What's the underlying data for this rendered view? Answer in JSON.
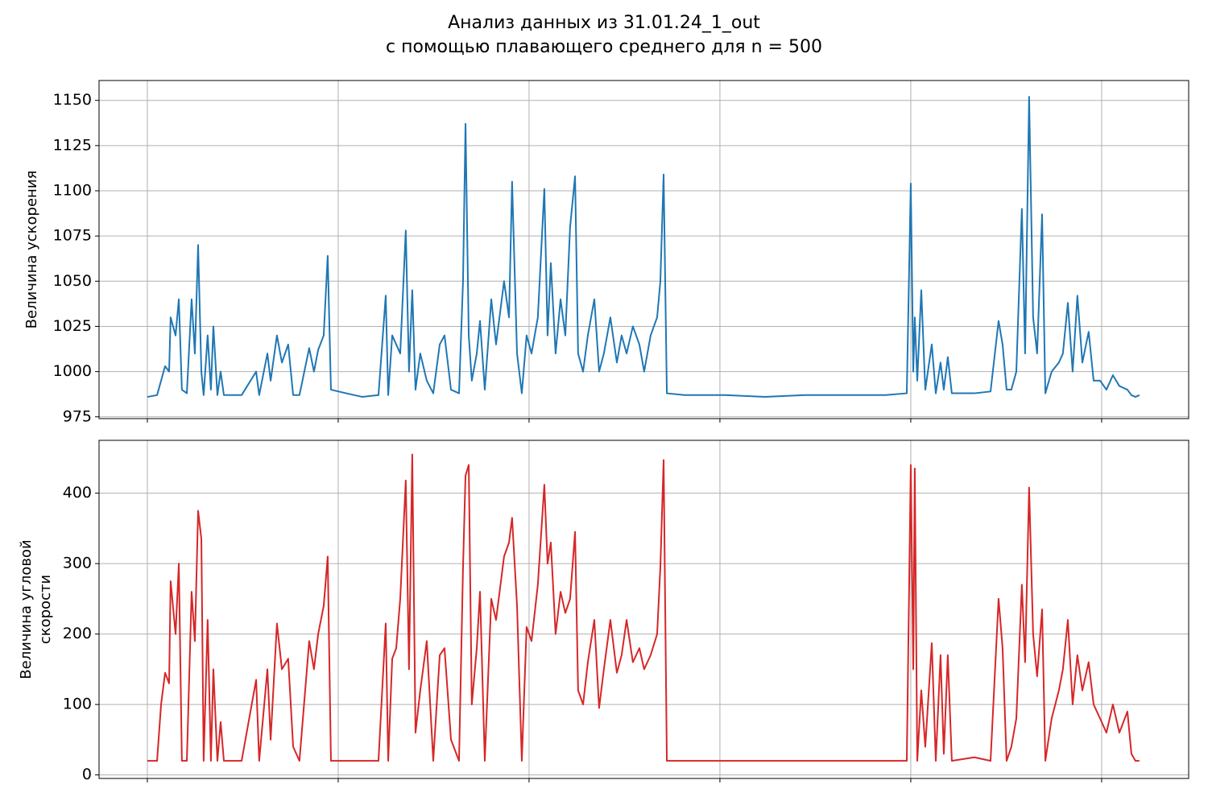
{
  "title": [
    "Анализ данных из 31.01.24_1_out",
    "с помощью плавающего среднего для n = 500"
  ],
  "chart_data": [
    {
      "type": "line",
      "ylabel": "Величина ускорения",
      "color": "#1f77b4",
      "grid": true,
      "xlim": [
        -0.253,
        5.456
      ],
      "xticks": [
        0,
        1,
        2,
        3,
        4,
        5
      ],
      "ylim": [
        974,
        1161
      ],
      "yticks": [
        975,
        1000,
        1025,
        1050,
        1075,
        1100,
        1125,
        1150
      ],
      "x": [
        0,
        0.051,
        0.072,
        0.093,
        0.114,
        0.122,
        0.148,
        0.165,
        0.181,
        0.207,
        0.232,
        0.249,
        0.266,
        0.283,
        0.295,
        0.316,
        0.333,
        0.346,
        0.367,
        0.384,
        0.401,
        0.494,
        0.57,
        0.586,
        0.629,
        0.646,
        0.679,
        0.705,
        0.738,
        0.764,
        0.797,
        0.848,
        0.873,
        0.895,
        0.924,
        0.945,
        0.962,
        1.042,
        1.127,
        1.211,
        1.249,
        1.262,
        1.283,
        1.304,
        1.325,
        1.354,
        1.371,
        1.388,
        1.405,
        1.43,
        1.464,
        1.498,
        1.532,
        1.557,
        1.591,
        1.633,
        1.654,
        1.667,
        1.684,
        1.7,
        1.726,
        1.743,
        1.768,
        1.802,
        1.827,
        1.869,
        1.895,
        1.911,
        1.937,
        1.962,
        1.987,
        2.013,
        2.046,
        2.08,
        2.097,
        2.114,
        2.139,
        2.165,
        2.19,
        2.215,
        2.241,
        2.257,
        2.283,
        2.308,
        2.342,
        2.367,
        2.392,
        2.426,
        2.46,
        2.485,
        2.511,
        2.544,
        2.578,
        2.603,
        2.637,
        2.671,
        2.688,
        2.705,
        2.722,
        2.814,
        3.025,
        3.236,
        3.447,
        3.658,
        3.869,
        3.979,
        4.0,
        4.013,
        4.021,
        4.034,
        4.055,
        4.076,
        4.11,
        4.131,
        4.156,
        4.173,
        4.194,
        4.215,
        4.333,
        4.418,
        4.46,
        4.481,
        4.502,
        4.527,
        4.553,
        4.582,
        4.599,
        4.62,
        4.641,
        4.662,
        4.688,
        4.705,
        4.738,
        4.776,
        4.797,
        4.823,
        4.848,
        4.873,
        4.899,
        4.932,
        4.958,
        4.992,
        5.025,
        5.059,
        5.093,
        5.135,
        5.156,
        5.177,
        5.198
      ],
      "values": [
        986,
        987,
        995,
        1003,
        1000,
        1030,
        1020,
        1040,
        990,
        988,
        1040,
        1010,
        1070,
        1000,
        987,
        1020,
        990,
        1025,
        987,
        1000,
        987,
        987,
        1000,
        987,
        1010,
        995,
        1020,
        1005,
        1015,
        987,
        987,
        1013,
        1000,
        1012,
        1020,
        1064,
        990,
        988,
        986,
        987,
        1042,
        987,
        1020,
        1015,
        1010,
        1078,
        1000,
        1045,
        990,
        1010,
        995,
        988,
        1015,
        1020,
        990,
        988,
        1050,
        1137,
        1020,
        995,
        1010,
        1028,
        990,
        1040,
        1015,
        1050,
        1030,
        1105,
        1010,
        988,
        1020,
        1010,
        1030,
        1101,
        1020,
        1060,
        1010,
        1040,
        1020,
        1080,
        1108,
        1010,
        1000,
        1020,
        1040,
        1000,
        1010,
        1030,
        1005,
        1020,
        1010,
        1025,
        1015,
        1000,
        1020,
        1030,
        1050,
        1109,
        988,
        987,
        987,
        986,
        987,
        987,
        987,
        988,
        1104,
        1000,
        1030,
        995,
        1045,
        990,
        1015,
        988,
        1005,
        990,
        1008,
        988,
        988,
        989,
        1028,
        1015,
        990,
        990,
        1000,
        1090,
        1010,
        1152,
        1030,
        1010,
        1087,
        988,
        1000,
        1005,
        1010,
        1038,
        1000,
        1042,
        1005,
        1022,
        995,
        995,
        990,
        998,
        992,
        990,
        987,
        986,
        987
      ]
    },
    {
      "type": "line",
      "ylabel": [
        "Величина угловой",
        "скорости"
      ],
      "color": "#d62728",
      "grid": true,
      "xlim": [
        -0.253,
        5.456
      ],
      "xticks": [
        0,
        1,
        2,
        3,
        4,
        5
      ],
      "ylim": [
        -5,
        475
      ],
      "yticks": [
        0,
        100,
        200,
        300,
        400
      ],
      "x": [
        0,
        0.051,
        0.072,
        0.093,
        0.114,
        0.122,
        0.148,
        0.165,
        0.181,
        0.207,
        0.232,
        0.249,
        0.266,
        0.283,
        0.295,
        0.316,
        0.333,
        0.346,
        0.367,
        0.384,
        0.401,
        0.494,
        0.57,
        0.586,
        0.629,
        0.646,
        0.679,
        0.705,
        0.738,
        0.764,
        0.797,
        0.848,
        0.873,
        0.895,
        0.924,
        0.945,
        0.962,
        1.042,
        1.127,
        1.211,
        1.249,
        1.262,
        1.283,
        1.304,
        1.325,
        1.354,
        1.371,
        1.388,
        1.405,
        1.43,
        1.464,
        1.498,
        1.532,
        1.557,
        1.591,
        1.633,
        1.654,
        1.667,
        1.684,
        1.7,
        1.726,
        1.743,
        1.768,
        1.802,
        1.827,
        1.869,
        1.895,
        1.911,
        1.937,
        1.962,
        1.987,
        2.013,
        2.046,
        2.08,
        2.097,
        2.114,
        2.139,
        2.165,
        2.19,
        2.215,
        2.241,
        2.257,
        2.283,
        2.308,
        2.342,
        2.367,
        2.392,
        2.426,
        2.46,
        2.485,
        2.511,
        2.544,
        2.578,
        2.603,
        2.637,
        2.671,
        2.688,
        2.705,
        2.722,
        2.814,
        3.025,
        3.236,
        3.447,
        3.658,
        3.869,
        3.979,
        4.0,
        4.013,
        4.021,
        4.034,
        4.055,
        4.076,
        4.11,
        4.131,
        4.156,
        4.173,
        4.194,
        4.215,
        4.333,
        4.418,
        4.46,
        4.481,
        4.502,
        4.527,
        4.553,
        4.582,
        4.599,
        4.62,
        4.641,
        4.662,
        4.688,
        4.705,
        4.738,
        4.776,
        4.797,
        4.823,
        4.848,
        4.873,
        4.899,
        4.932,
        4.958,
        4.992,
        5.025,
        5.059,
        5.093,
        5.135,
        5.156,
        5.177,
        5.198
      ],
      "values": [
        20,
        20,
        100,
        145,
        130,
        275,
        200,
        300,
        20,
        20,
        260,
        190,
        375,
        335,
        20,
        220,
        20,
        150,
        20,
        75,
        20,
        20,
        135,
        20,
        150,
        50,
        215,
        150,
        165,
        40,
        20,
        190,
        150,
        200,
        240,
        310,
        20,
        20,
        20,
        20,
        215,
        20,
        165,
        180,
        250,
        418,
        150,
        455,
        60,
        120,
        190,
        20,
        170,
        180,
        50,
        20,
        295,
        425,
        440,
        100,
        180,
        260,
        20,
        250,
        220,
        310,
        330,
        365,
        240,
        20,
        210,
        190,
        270,
        412,
        300,
        330,
        200,
        260,
        230,
        250,
        345,
        120,
        100,
        160,
        220,
        95,
        150,
        220,
        145,
        170,
        220,
        160,
        180,
        150,
        170,
        200,
        295,
        447,
        20,
        20,
        20,
        20,
        20,
        20,
        20,
        20,
        440,
        150,
        435,
        20,
        120,
        40,
        187,
        20,
        170,
        30,
        170,
        20,
        25,
        20,
        250,
        180,
        20,
        40,
        80,
        270,
        160,
        408,
        200,
        140,
        235,
        20,
        80,
        120,
        150,
        220,
        100,
        170,
        120,
        160,
        100,
        80,
        60,
        100,
        60,
        90,
        30,
        20,
        20
      ]
    }
  ]
}
